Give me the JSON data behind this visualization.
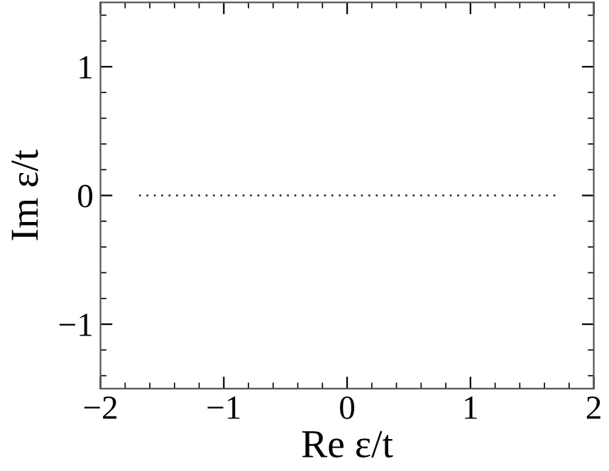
{
  "chart_data": {
    "type": "scatter",
    "xlabel": "Re ε/t",
    "ylabel": "Im ε/t",
    "x": [
      -1.68,
      -1.62,
      -1.56,
      -1.5,
      -1.44,
      -1.38,
      -1.32,
      -1.26,
      -1.2,
      -1.14,
      -1.08,
      -1.02,
      -0.96,
      -0.9,
      -0.84,
      -0.78,
      -0.72,
      -0.66,
      -0.6,
      -0.54,
      -0.48,
      -0.42,
      -0.36,
      -0.3,
      -0.24,
      -0.18,
      -0.12,
      -0.06,
      0.0,
      0.06,
      0.12,
      0.18,
      0.24,
      0.3,
      0.36,
      0.42,
      0.48,
      0.54,
      0.6,
      0.66,
      0.72,
      0.78,
      0.84,
      0.9,
      0.96,
      1.02,
      1.08,
      1.14,
      1.2,
      1.26,
      1.32,
      1.38,
      1.44,
      1.5,
      1.56,
      1.62,
      1.68
    ],
    "values": [
      0,
      0,
      0,
      0,
      0,
      0,
      0,
      0,
      0,
      0,
      0,
      0,
      0,
      0,
      0,
      0,
      0,
      0,
      0,
      0,
      0,
      0,
      0,
      0,
      0,
      0,
      0,
      0,
      0,
      0,
      0,
      0,
      0,
      0,
      0,
      0,
      0,
      0,
      0,
      0,
      0,
      0,
      0,
      0,
      0,
      0,
      0,
      0,
      0,
      0,
      0,
      0,
      0,
      0,
      0,
      0,
      0
    ],
    "color": "#333333",
    "marker": "circle",
    "xlim": [
      -2,
      2
    ],
    "ylim": [
      -1.5,
      1.5
    ],
    "xticks": [
      {
        "value": -2,
        "label": "−2"
      },
      {
        "value": -1,
        "label": "−1"
      },
      0,
      1,
      2
    ],
    "yticks": [
      {
        "value": -1,
        "label": "−1"
      },
      0,
      1
    ],
    "grid": false,
    "legend": false
  }
}
